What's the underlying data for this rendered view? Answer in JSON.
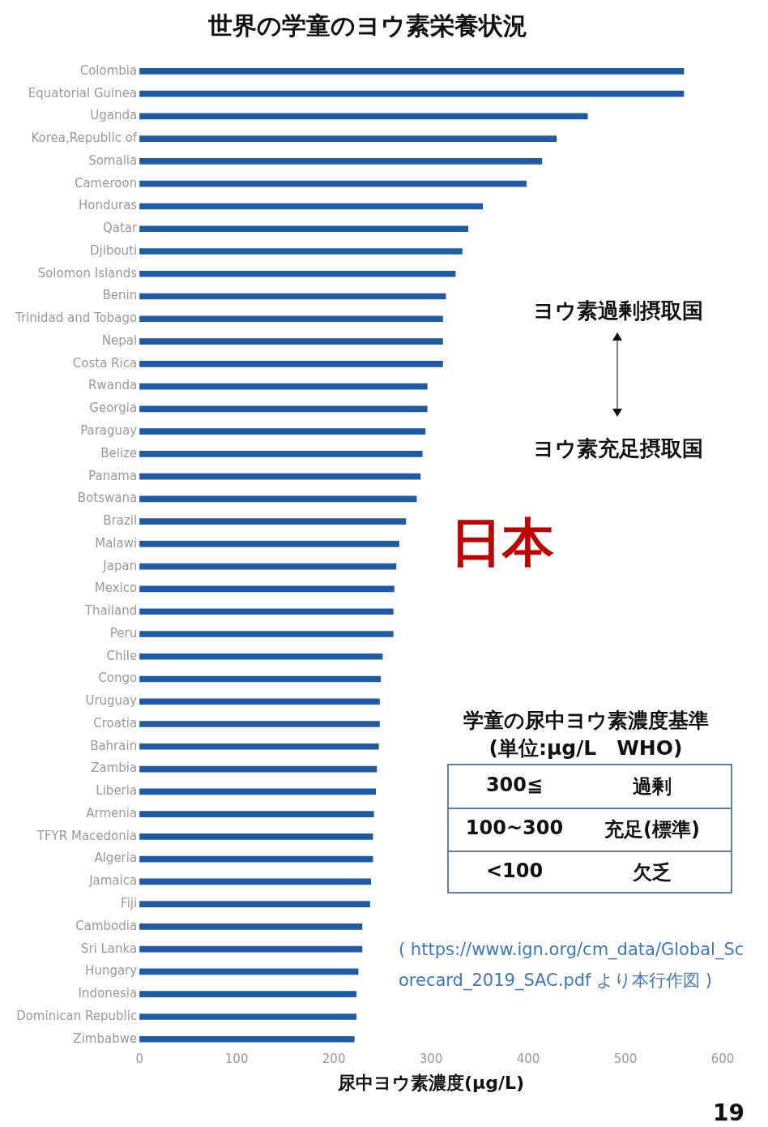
{
  "chart_data": {
    "type": "bar",
    "orientation": "horizontal",
    "title": "世界の学童のヨウ素栄養状況",
    "xlabel": "尿中ヨウ素濃度(μg/L)",
    "categories": [
      "Colombia",
      "Equatorial Guinea",
      "Uganda",
      "Korea,Republic of",
      "Somalia",
      "Cameroon",
      "Honduras",
      "Qatar",
      "Djibouti",
      "Solomon Islands",
      "Benin",
      "Trinidad and Tobago",
      "Nepal",
      "Costa Rica",
      "Rwanda",
      "Georgia",
      "Paraguay",
      "Belize",
      "Panama",
      "Botswana",
      "Brazil",
      "Malawi",
      "Japan",
      "Mexico",
      "Thailand",
      "Peru",
      "Chile",
      "Congo",
      "Uruguay",
      "Croatia",
      "Bahrain",
      "Zambia",
      "Liberia",
      "Armenia",
      "TFYR Macedonia",
      "Algeria",
      "Jamaica",
      "Fiji",
      "Cambodia",
      "Sri Lanka",
      "Hungary",
      "Indonesia",
      "Dominican Republic",
      "Zimbabwe"
    ],
    "values": [
      560,
      560,
      461,
      429,
      414,
      398,
      353,
      338,
      332,
      325,
      315,
      312,
      312,
      312,
      296,
      296,
      294,
      291,
      289,
      285,
      274,
      267,
      264,
      262,
      261,
      261,
      250,
      248,
      247,
      247,
      246,
      244,
      243,
      241,
      240,
      240,
      238,
      237,
      229,
      229,
      225,
      223,
      223,
      221
    ],
    "color": "#1f5aa6",
    "xlim": [
      0,
      600
    ],
    "xticks": [
      0,
      100,
      200,
      300,
      400,
      500,
      600
    ],
    "grid": false,
    "annotations": [
      "ヨウ素過剰摂取国",
      "ヨウ素充足摂取国",
      "学童の尿中ヨウ素濃度基準",
      "(単位:μg/L　WHO)",
      "300≦",
      "過剰",
      "100~300",
      "充足(標準)",
      "<100",
      "欠乏",
      "( https://www.ign.org/cm_data/Global_Scorecard_2019_SAC.pdf より本行作図 )",
      "19",
      "日本"
    ]
  }
}
